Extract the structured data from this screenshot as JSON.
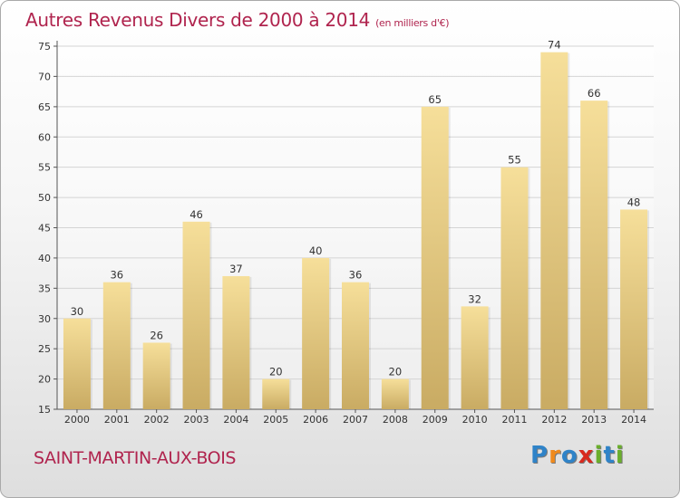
{
  "header": {
    "title": "Autres Revenus Divers de 2000 à 2014",
    "subtitle": "(en milliers d'€)"
  },
  "footer": {
    "place": "SAINT-MARTIN-AUX-BOIS",
    "logo": [
      "P",
      "r",
      "o",
      "x",
      "i",
      "t",
      "i"
    ]
  },
  "colors": {
    "title": "#b0244e",
    "bar_light": "#f6df9a",
    "bar_dark": "#c9ab63",
    "grid": "#d4d4d4",
    "logo": [
      "#2f83c8",
      "#f08a1d",
      "#2f83c8",
      "#d8291e",
      "#6aae2c",
      "#2f83c8",
      "#6aae2c"
    ]
  },
  "chart_data": {
    "type": "bar",
    "categories": [
      "2000",
      "2001",
      "2002",
      "2003",
      "2004",
      "2005",
      "2006",
      "2007",
      "2008",
      "2009",
      "2010",
      "2011",
      "2012",
      "2013",
      "2014"
    ],
    "values": [
      30,
      36,
      26,
      46,
      37,
      20,
      40,
      36,
      20,
      65,
      32,
      55,
      74,
      66,
      48
    ],
    "ylim": [
      15,
      75
    ],
    "yticks": [
      15,
      20,
      25,
      30,
      35,
      40,
      45,
      50,
      55,
      60,
      65,
      70,
      75
    ],
    "grid": true
  }
}
